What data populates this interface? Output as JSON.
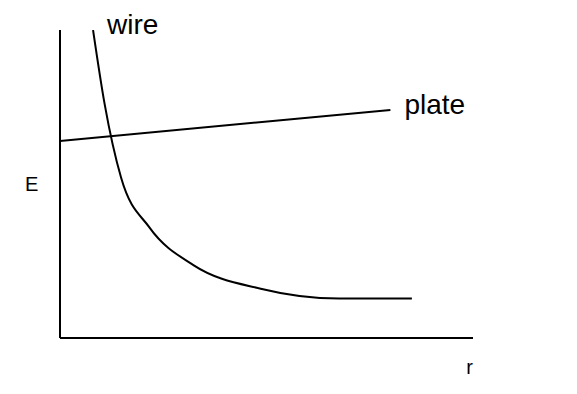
{
  "chart_data": {
    "type": "line",
    "xlabel": "r",
    "ylabel": "E",
    "xlim": [
      0,
      5
    ],
    "ylim": [
      0,
      2.5
    ],
    "tick_labels": false,
    "grid": false,
    "series": [
      {
        "name": "wire",
        "color": "#000000",
        "x": [
          0.4,
          0.54,
          0.74,
          1.08,
          1.62,
          2.43,
          3.38,
          4.26
        ],
        "values": [
          2.5,
          1.9,
          1.3,
          0.9,
          0.59,
          0.4,
          0.32,
          0.32
        ]
      },
      {
        "name": "plate",
        "color": "#000000",
        "x": [
          0,
          4.0
        ],
        "values": [
          1.6,
          1.85
        ]
      }
    ]
  }
}
